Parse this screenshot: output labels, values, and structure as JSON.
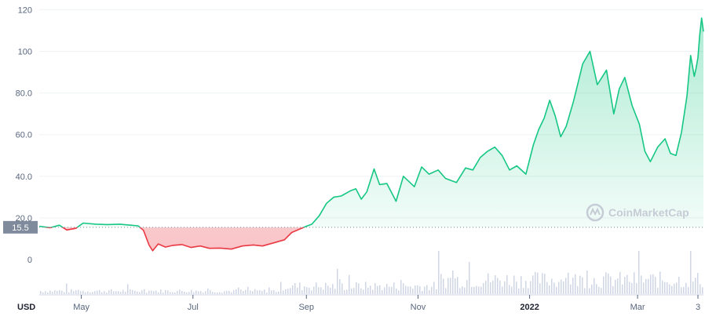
{
  "chart_data": {
    "type": "area",
    "currency_label": "USD",
    "watermark": "CoinMarketCap",
    "reference_value": 15.5,
    "reference_label": "15.5",
    "y_ticks": [
      "0",
      "20.0",
      "40.0",
      "60.0",
      "80.0",
      "100",
      "120"
    ],
    "y_tick_values": [
      0,
      20,
      40,
      60,
      80,
      100,
      120
    ],
    "ylim": [
      -6,
      122
    ],
    "x_ticks": [
      {
        "label": "May",
        "date": "2021-05-01",
        "bold": false
      },
      {
        "label": "Jul",
        "date": "2021-07-01",
        "bold": false
      },
      {
        "label": "Sep",
        "date": "2021-09-01",
        "bold": false
      },
      {
        "label": "Nov",
        "date": "2021-11-01",
        "bold": false
      },
      {
        "label": "2022",
        "date": "2022-01-01",
        "bold": true
      },
      {
        "label": "Mar",
        "date": "2022-03-01",
        "bold": false
      },
      {
        "label": "3",
        "date": "2022-04-03",
        "bold": false
      }
    ],
    "xlim": [
      "2021-04-08",
      "2022-04-06"
    ],
    "colors": {
      "up": "#16c784",
      "down": "#ea3943",
      "volume": "#cfd6e4",
      "reference": "#808a9d",
      "grid": "#eff2f5"
    },
    "series": [
      {
        "points": [
          [
            "2021-04-08",
            16.0
          ],
          [
            "2021-04-14",
            15.3
          ],
          [
            "2021-04-19",
            16.5
          ],
          [
            "2021-04-23",
            14.2
          ],
          [
            "2021-04-28",
            15.0
          ],
          [
            "2021-05-02",
            17.5
          ],
          [
            "2021-05-09",
            17.0
          ],
          [
            "2021-05-15",
            16.8
          ],
          [
            "2021-05-22",
            17.0
          ],
          [
            "2021-05-28",
            16.5
          ],
          [
            "2021-06-01",
            16.2
          ],
          [
            "2021-06-04",
            14.0
          ],
          [
            "2021-06-07",
            7.0
          ],
          [
            "2021-06-09",
            4.2
          ],
          [
            "2021-06-12",
            7.5
          ],
          [
            "2021-06-16",
            6.0
          ],
          [
            "2021-06-20",
            6.8
          ],
          [
            "2021-06-25",
            7.2
          ],
          [
            "2021-06-30",
            5.8
          ],
          [
            "2021-07-05",
            6.5
          ],
          [
            "2021-07-10",
            5.4
          ],
          [
            "2021-07-16",
            5.5
          ],
          [
            "2021-07-22",
            5.0
          ],
          [
            "2021-07-28",
            6.5
          ],
          [
            "2021-08-03",
            7.0
          ],
          [
            "2021-08-08",
            6.5
          ],
          [
            "2021-08-14",
            8.0
          ],
          [
            "2021-08-20",
            9.5
          ],
          [
            "2021-08-24",
            13.0
          ],
          [
            "2021-08-28",
            14.5
          ],
          [
            "2021-09-01",
            16.0
          ],
          [
            "2021-09-04",
            17.0
          ],
          [
            "2021-09-08",
            21.0
          ],
          [
            "2021-09-12",
            27.0
          ],
          [
            "2021-09-16",
            30.0
          ],
          [
            "2021-09-20",
            30.5
          ],
          [
            "2021-09-25",
            33.0
          ],
          [
            "2021-09-28",
            34.0
          ],
          [
            "2021-10-01",
            29.0
          ],
          [
            "2021-10-04",
            32.5
          ],
          [
            "2021-10-08",
            43.5
          ],
          [
            "2021-10-11",
            36.0
          ],
          [
            "2021-10-15",
            36.5
          ],
          [
            "2021-10-20",
            28.0
          ],
          [
            "2021-10-24",
            40.0
          ],
          [
            "2021-10-30",
            35.0
          ],
          [
            "2021-11-03",
            44.5
          ],
          [
            "2021-11-07",
            41.0
          ],
          [
            "2021-11-12",
            43.0
          ],
          [
            "2021-11-16",
            39.0
          ],
          [
            "2021-11-22",
            37.0
          ],
          [
            "2021-11-27",
            44.0
          ],
          [
            "2021-12-01",
            43.0
          ],
          [
            "2021-12-05",
            49.0
          ],
          [
            "2021-12-09",
            52.0
          ],
          [
            "2021-12-13",
            54.0
          ],
          [
            "2021-12-17",
            50.0
          ],
          [
            "2021-12-21",
            43.0
          ],
          [
            "2021-12-25",
            45.0
          ],
          [
            "2021-12-30",
            41.0
          ],
          [
            "2022-01-03",
            55.0
          ],
          [
            "2022-01-06",
            62.5
          ],
          [
            "2022-01-09",
            68.0
          ],
          [
            "2022-01-12",
            76.5
          ],
          [
            "2022-01-15",
            69.0
          ],
          [
            "2022-01-18",
            59.0
          ],
          [
            "2022-01-21",
            64.0
          ],
          [
            "2022-01-25",
            76.0
          ],
          [
            "2022-01-30",
            94.0
          ],
          [
            "2022-02-03",
            100.0
          ],
          [
            "2022-02-07",
            84.0
          ],
          [
            "2022-02-12",
            91.0
          ],
          [
            "2022-02-16",
            70.0
          ],
          [
            "2022-02-19",
            82.0
          ],
          [
            "2022-02-22",
            87.5
          ],
          [
            "2022-02-26",
            74.0
          ],
          [
            "2022-03-02",
            65.0
          ],
          [
            "2022-03-05",
            52.0
          ],
          [
            "2022-03-08",
            47.0
          ],
          [
            "2022-03-12",
            54.0
          ],
          [
            "2022-03-16",
            58.0
          ],
          [
            "2022-03-19",
            51.0
          ],
          [
            "2022-03-22",
            50.0
          ],
          [
            "2022-03-25",
            61.0
          ],
          [
            "2022-03-28",
            78.5
          ],
          [
            "2022-03-30",
            98.0
          ],
          [
            "2022-04-01",
            88.0
          ],
          [
            "2022-04-02",
            92.0
          ],
          [
            "2022-04-03",
            97.0
          ],
          [
            "2022-04-04",
            108.0
          ],
          [
            "2022-04-05",
            116.0
          ],
          [
            "2022-04-06",
            109.5
          ]
        ]
      }
    ]
  }
}
